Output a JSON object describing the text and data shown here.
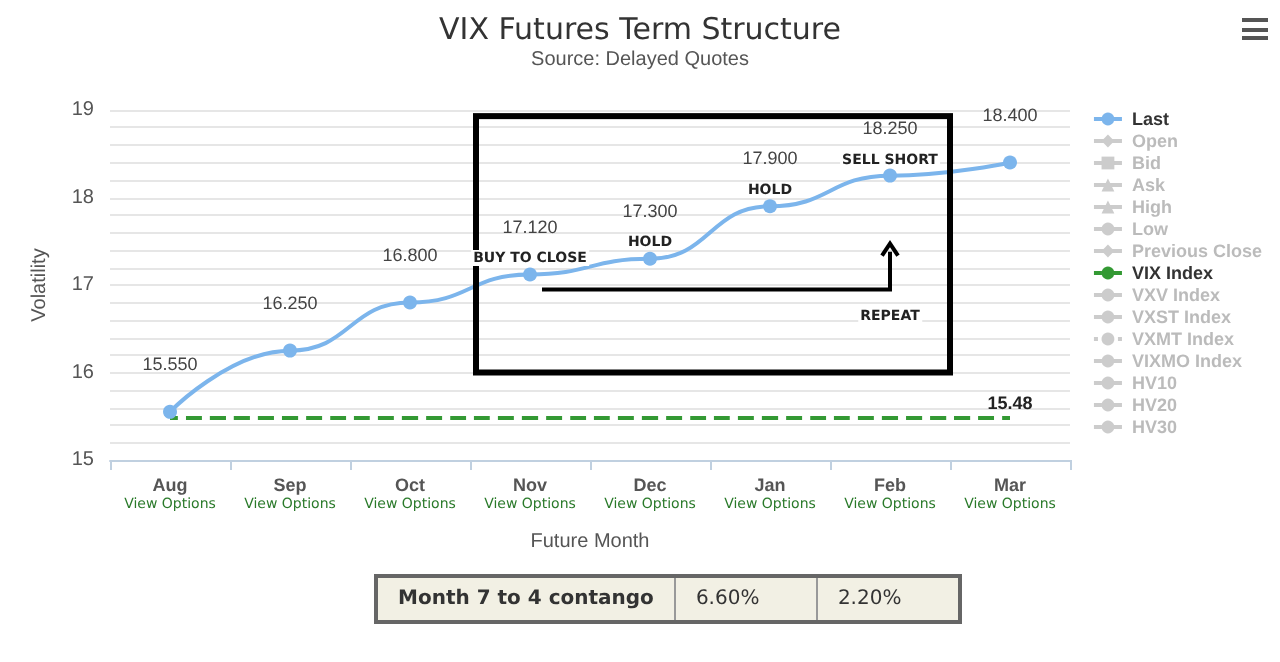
{
  "chart_data": {
    "type": "line",
    "title": "VIX Futures Term Structure",
    "subtitle": "Source: Delayed Quotes",
    "xlabel": "Future Month",
    "ylabel": "Volatility",
    "categories": [
      "Aug",
      "Sep",
      "Oct",
      "Nov",
      "Dec",
      "Jan",
      "Feb",
      "Mar"
    ],
    "series": [
      {
        "name": "Last",
        "color": "#7cb5ec",
        "marker": "circle",
        "line_style": "solid",
        "values": [
          15.55,
          16.25,
          16.8,
          17.12,
          17.3,
          17.9,
          18.25,
          18.4
        ],
        "value_labels": [
          "15.550",
          "16.250",
          "16.800",
          "17.120",
          "17.300",
          "17.900",
          "18.250",
          "18.400"
        ]
      },
      {
        "name": "Open",
        "color": "#cccccc",
        "marker": "diamond",
        "values": [
          null,
          null,
          null,
          null,
          null,
          null,
          null,
          null
        ]
      },
      {
        "name": "Bid",
        "color": "#cccccc",
        "marker": "square",
        "values": [
          null,
          null,
          null,
          null,
          null,
          null,
          null,
          null
        ]
      },
      {
        "name": "Ask",
        "color": "#cccccc",
        "marker": "triangle",
        "values": [
          null,
          null,
          null,
          null,
          null,
          null,
          null,
          null
        ]
      },
      {
        "name": "High",
        "color": "#cccccc",
        "marker": "triangle",
        "values": [
          null,
          null,
          null,
          null,
          null,
          null,
          null,
          null
        ]
      },
      {
        "name": "Low",
        "color": "#cccccc",
        "marker": "circle",
        "values": [
          null,
          null,
          null,
          null,
          null,
          null,
          null,
          null
        ]
      },
      {
        "name": "Previous Close",
        "color": "#cccccc",
        "marker": "diamond",
        "values": [
          null,
          null,
          null,
          null,
          null,
          null,
          null,
          null
        ]
      },
      {
        "name": "VIX Index",
        "color": "#339933",
        "marker": "none",
        "line_style": "dashed",
        "values": [
          15.48,
          15.48,
          15.48,
          15.48,
          15.48,
          15.48,
          15.48,
          15.48
        ],
        "value_labels": [
          null,
          null,
          null,
          null,
          null,
          null,
          null,
          "15.48"
        ]
      },
      {
        "name": "VXV Index",
        "color": "#cccccc",
        "marker": "none",
        "line_style": "solid",
        "values": [
          null,
          null,
          null,
          null,
          null,
          null,
          null,
          null
        ]
      },
      {
        "name": "VXST Index",
        "color": "#cccccc",
        "marker": "none",
        "line_style": "solid",
        "values": [
          null,
          null,
          null,
          null,
          null,
          null,
          null,
          null
        ]
      },
      {
        "name": "VXMT Index",
        "color": "#cccccc",
        "marker": "none",
        "line_style": "dotted",
        "values": [
          null,
          null,
          null,
          null,
          null,
          null,
          null,
          null
        ]
      },
      {
        "name": "VIXMO Index",
        "color": "#cccccc",
        "marker": "none",
        "line_style": "dashed",
        "values": [
          null,
          null,
          null,
          null,
          null,
          null,
          null,
          null
        ]
      },
      {
        "name": "HV10",
        "color": "#cccccc",
        "marker": "none",
        "line_style": "dashed",
        "values": [
          null,
          null,
          null,
          null,
          null,
          null,
          null,
          null
        ]
      },
      {
        "name": "HV20",
        "color": "#cccccc",
        "marker": "none",
        "line_style": "dashed",
        "values": [
          null,
          null,
          null,
          null,
          null,
          null,
          null,
          null
        ]
      },
      {
        "name": "HV30",
        "color": "#cccccc",
        "marker": "none",
        "line_style": "dashed",
        "values": [
          null,
          null,
          null,
          null,
          null,
          null,
          null,
          null
        ]
      }
    ],
    "ylim": [
      15,
      19
    ],
    "yticks": [
      15,
      {
        "value": 15.2,
        "label": null
      },
      {
        "value": 15.4,
        "label": null
      },
      {
        "value": 15.6,
        "label": null
      },
      {
        "value": 15.8,
        "label": null
      },
      16,
      {
        "value": 16.2,
        "label": null
      },
      {
        "value": 16.4,
        "label": null
      },
      {
        "value": 16.6,
        "label": null
      },
      {
        "value": 16.8,
        "label": null
      },
      17,
      {
        "value": 17.2,
        "label": null
      },
      {
        "value": 17.4,
        "label": null
      },
      {
        "value": 17.6,
        "label": null
      },
      {
        "value": 17.8,
        "label": null
      },
      18,
      {
        "value": 18.2,
        "label": null
      },
      {
        "value": 18.4,
        "label": null
      },
      {
        "value": 18.6,
        "label": null
      },
      {
        "value": 18.8,
        "label": null
      },
      19
    ],
    "grid": "y",
    "legend": "right",
    "annotations": [
      {
        "text": "BUY TO CLOSE",
        "x": "Nov",
        "y": 17.12
      },
      {
        "text": "HOLD",
        "x": "Dec",
        "y": 17.3
      },
      {
        "text": "HOLD",
        "x": "Jan",
        "y": 17.9
      },
      {
        "text": "SELL SHORT",
        "x": "Feb",
        "y": 18.25
      },
      "View Options",
      "View Options",
      "View Options",
      "View Options",
      "View Options",
      "View Options",
      "View Options",
      "View Options",
      "REPEAT",
      "Month 7 to 4 contango",
      "6.60%",
      "2.20%"
    ]
  }
}
